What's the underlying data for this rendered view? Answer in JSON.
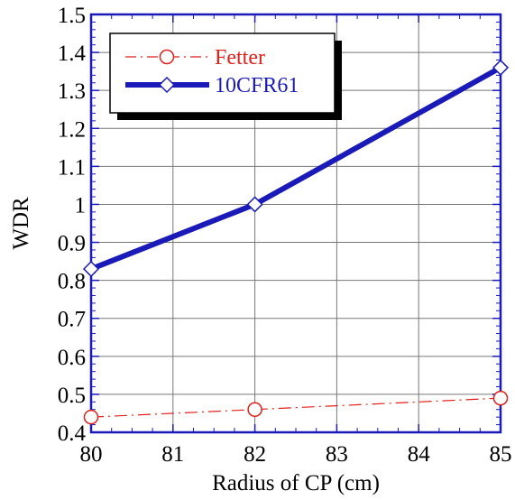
{
  "chart_data": {
    "type": "line",
    "title": "",
    "xlabel": "Radius of CP (cm)",
    "ylabel": "WDR",
    "xlim": [
      80,
      85
    ],
    "ylim": [
      0.4,
      1.5
    ],
    "x_ticks": [
      80,
      81,
      82,
      83,
      84,
      85
    ],
    "x_tick_labels": [
      "80",
      "81",
      "82",
      "83",
      "84",
      "85"
    ],
    "y_ticks": [
      0.4,
      0.5,
      0.6,
      0.7,
      0.8,
      0.9,
      1.0,
      1.1,
      1.2,
      1.3,
      1.4,
      1.5
    ],
    "y_tick_labels": [
      "0.4",
      "0.5",
      "0.6",
      "0.7",
      "0.8",
      "0.9",
      "1",
      "1.1",
      "1.2",
      "1.3",
      "1.4",
      "1.5"
    ],
    "grid": true,
    "legend_position": "top-left",
    "series": [
      {
        "name": "Fetter",
        "color": "#e0201b",
        "line_style": "dash-dot",
        "marker": "circle",
        "x": [
          80,
          82,
          85
        ],
        "y": [
          0.44,
          0.46,
          0.49
        ]
      },
      {
        "name": "10CFR61",
        "color": "#1a1ab8",
        "line_style": "solid-thick",
        "marker": "diamond",
        "x": [
          80,
          82,
          85
        ],
        "y": [
          0.83,
          1.0,
          1.36
        ]
      }
    ]
  }
}
